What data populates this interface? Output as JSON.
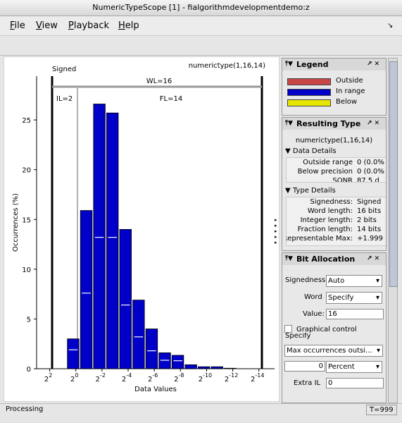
{
  "window": {
    "title": "NumericTypeScope [1] - fialgorithmdevelopmentdemo:z",
    "menu": [
      "File",
      "View",
      "Playback",
      "Help"
    ],
    "status": "Processing",
    "time": "T=999"
  },
  "chart_data": {
    "type": "histogram",
    "xlabel": "Data Values",
    "ylabel": "Occurrences (%)",
    "annotations": {
      "signed": "Signed",
      "type": "numerictype(1,16,14)",
      "wl": "WL=16",
      "il": "IL=2",
      "fl": "FL=14"
    },
    "bins": [
      0.7,
      -0.3,
      -1.3,
      -2.3,
      -3.3,
      -4.3,
      -5.3,
      -6.3,
      -7.3,
      -8.3,
      -9.3,
      -10.3,
      -11.3,
      -12.3
    ],
    "values": [
      3.0,
      15.9,
      26.6,
      25.7,
      14.0,
      6.9,
      4.0,
      1.6,
      1.35,
      0.4,
      0.2,
      0.2,
      0.05
    ],
    "marker_values": [
      1.9,
      7.6,
      13.2,
      13.2,
      6.4,
      3.2,
      1.8,
      0.85,
      0.8,
      null,
      null,
      null,
      null
    ],
    "color": "#0000c8",
    "xlim": [
      3.0,
      -15.2
    ],
    "xticks": [
      2,
      0,
      -2,
      -4,
      -6,
      -8,
      -10,
      -12,
      -14
    ],
    "tick_base": "2",
    "ylim": [
      0,
      29.4
    ],
    "yticks": [
      0,
      5,
      10,
      15,
      20,
      25
    ]
  },
  "legend": {
    "title": "Legend",
    "items": [
      {
        "label": "Outside",
        "color": "#c84646"
      },
      {
        "label": "In range",
        "color": "#0000c8"
      },
      {
        "label": "Below",
        "color": "#e6e600"
      }
    ]
  },
  "resulting_type": {
    "title": "Resulting Type",
    "type": "numerictype(1,16,14)",
    "data_details": {
      "title": "Data Details",
      "rows": [
        [
          "Outside range",
          "0 (0.0%"
        ],
        [
          "Below precision",
          "0 (0.0%"
        ],
        [
          "SQNR",
          "87.5 d"
        ]
      ]
    },
    "type_details": {
      "title": "Type Details",
      "rows": [
        [
          "Signedness:",
          "Signed"
        ],
        [
          "Word length:",
          "16 bits"
        ],
        [
          "Integer length:",
          "2 bits"
        ],
        [
          "Fraction length:",
          "14 bits"
        ],
        [
          "Representable Max:",
          "+1.999"
        ]
      ]
    }
  },
  "bit_allocation": {
    "title": "Bit Allocation",
    "signedness_label": "Signedness",
    "signedness": "Auto",
    "word_label": "Word",
    "word": "Specify",
    "value_label": "Value:",
    "value": "16",
    "graphical_control": "Graphical control",
    "specify": "Specify",
    "method": "Max occurrences outsi...",
    "outside_value": "0",
    "outside_unit": "Percent",
    "extra_il_label": "Extra IL",
    "extra_il": "0"
  }
}
